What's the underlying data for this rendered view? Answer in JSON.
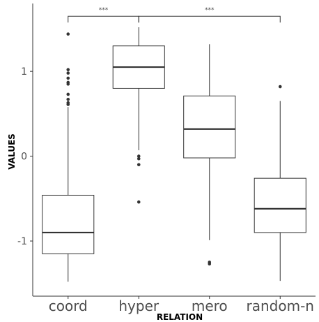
{
  "chart_data": {
    "type": "boxplot",
    "xlabel": "RELATION",
    "ylabel": "VALUES",
    "categories": [
      "coord",
      "hyper",
      "mero",
      "random-n"
    ],
    "ylim": [
      -1.65,
      1.8
    ],
    "yticks": [
      -1,
      0,
      1
    ],
    "ytick_labels": [
      "-1",
      "0",
      "1"
    ],
    "grid": false,
    "boxes": [
      {
        "category": "coord",
        "whisker_low": -1.48,
        "q1": -1.15,
        "median": -0.9,
        "q3": -0.46,
        "whisker_high": 0.58,
        "outliers": [
          1.44,
          1.02,
          0.98,
          0.92,
          0.87,
          0.85,
          0.73,
          0.67,
          0.63,
          0.61
        ]
      },
      {
        "category": "hyper",
        "whisker_low": 0.07,
        "q1": 0.8,
        "median": 1.05,
        "q3": 1.3,
        "whisker_high": 1.52,
        "outliers": [
          0.0,
          -0.03,
          -0.1,
          -0.54
        ]
      },
      {
        "category": "mero",
        "whisker_low": -0.99,
        "q1": -0.02,
        "median": 0.32,
        "q3": 0.71,
        "whisker_high": 1.32,
        "outliers": [
          -1.25,
          -1.27
        ]
      },
      {
        "category": "random-n",
        "whisker_low": -1.47,
        "q1": -0.9,
        "median": -0.62,
        "q3": -0.26,
        "whisker_high": 0.65,
        "outliers": [
          0.82
        ]
      }
    ],
    "significance": [
      {
        "from": "coord",
        "to": "hyper",
        "label": "***"
      },
      {
        "from": "hyper",
        "to": "random-n",
        "label": "***"
      }
    ],
    "significance_bracket_y": 1.65,
    "colors": {
      "box_fill": "#ffffff",
      "box_line": "#333333",
      "median_line": "#333333",
      "outlier": "#333333",
      "axis_text": "#4d4d4d"
    }
  }
}
